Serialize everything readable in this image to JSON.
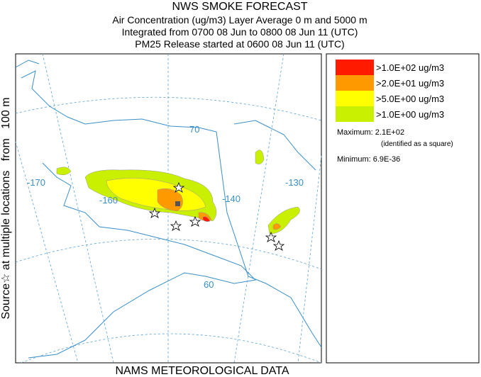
{
  "header": {
    "title": "NWS SMOKE FORECAST",
    "lines": [
      "Air Concentration (ug/m3) Layer Average    0 m and  5000 m",
      "Integrated from 0700 08 Jun to 0800 08 Jun 11 (UTC)",
      "PM25 Release started at 0600 08 Jun 11 (UTC)"
    ]
  },
  "side_label": "Source☆ at multiple locations   from   100 m",
  "footer": "NAMS METEOROLOGICAL DATA",
  "map": {
    "grid_labels": [
      "-170",
      "-160",
      "-140",
      "-130",
      "70",
      "60"
    ]
  },
  "legend": {
    "items": [
      {
        "label": ">1.0E+02 ug/m3",
        "color": "#ff1a00"
      },
      {
        "label": ">2.0E+01 ug/m3",
        "color": "#ff9900"
      },
      {
        "label": ">5.0E+00 ug/m3",
        "color": "#ffff00"
      },
      {
        "label": ">1.0E+00 ug/m3",
        "color": "#c8f000"
      }
    ],
    "maximum": "Maximum: 2.1E+02",
    "maximum_note": "(identified as a square)",
    "minimum": "Minimum: 6.9E-36"
  }
}
